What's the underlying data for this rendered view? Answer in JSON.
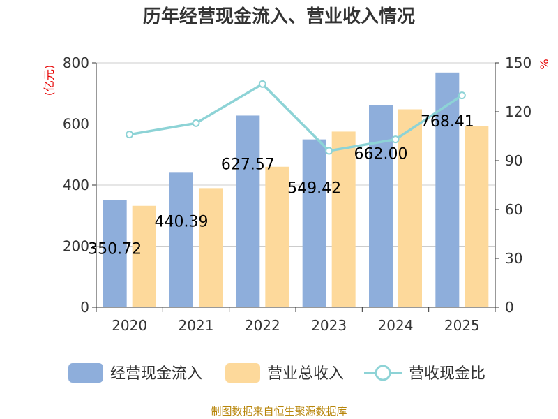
{
  "chart_data": {
    "type": "bar",
    "title": "历年经营现金流入、营业收入情况",
    "categories": [
      "2020",
      "2021",
      "2022",
      "2023",
      "2024",
      "2025"
    ],
    "series": [
      {
        "name": "经营现金流入",
        "type": "bar",
        "axis": "left",
        "color": "#8eaedb",
        "values": [
          350.72,
          440.39,
          627.57,
          549.42,
          662.0,
          768.41
        ]
      },
      {
        "name": "营业总收入",
        "type": "bar",
        "axis": "left",
        "color": "#fdd99b",
        "values": [
          332,
          390,
          460,
          575,
          648,
          592
        ]
      },
      {
        "name": "营收现金比",
        "type": "line",
        "axis": "right",
        "color": "#8dd3d6",
        "values": [
          106,
          113,
          137,
          96,
          103,
          130
        ]
      }
    ],
    "data_labels": [
      "350.72",
      "440.39",
      "627.57",
      "549.42",
      "662.00",
      "768.41"
    ],
    "y_left": {
      "unit": "(亿元)",
      "min": 0,
      "max": 800,
      "ticks": [
        "0",
        "200",
        "400",
        "600",
        "800"
      ]
    },
    "y_right": {
      "unit": "%",
      "min": 0,
      "max": 150,
      "ticks": [
        "0",
        "30",
        "60",
        "90",
        "120",
        "150"
      ]
    },
    "grid": true,
    "legend_position": "bottom",
    "source": "制图数据来自恒生聚源数据库"
  }
}
